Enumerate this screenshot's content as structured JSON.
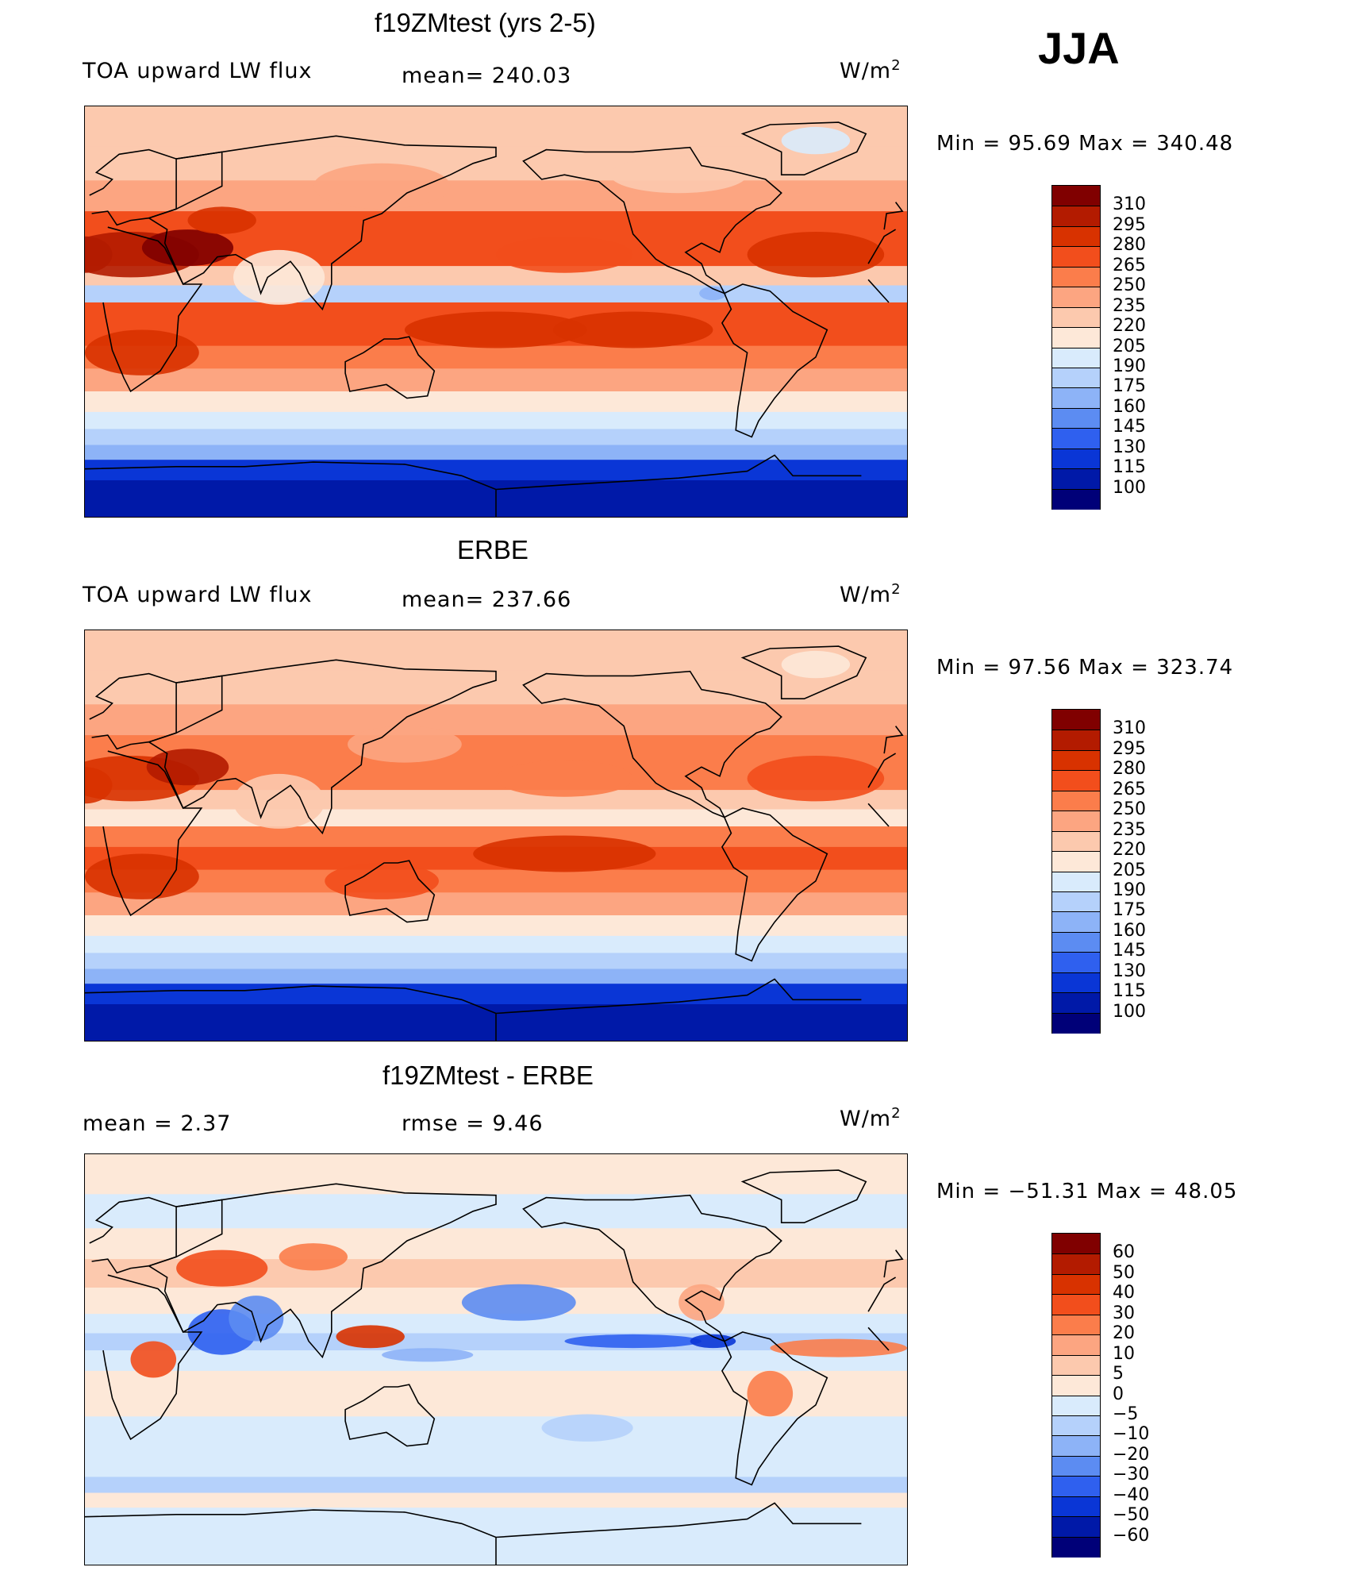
{
  "season": "JJA",
  "panels": [
    {
      "title": "f19ZMtest (yrs 2-5)",
      "left_label": "TOA upward LW flux",
      "center_label": "mean= 240.03",
      "units_base": "W/m",
      "units_exp": "2",
      "minmax": "Min =   95.69  Max  =  340.48",
      "colorbar_labels": [
        "310",
        "295",
        "280",
        "265",
        "250",
        "235",
        "220",
        "205",
        "190",
        "175",
        "160",
        "145",
        "130",
        "115",
        "100"
      ]
    },
    {
      "title": "ERBE",
      "left_label": "TOA upward LW flux",
      "center_label": "mean= 237.66",
      "units_base": "W/m",
      "units_exp": "2",
      "minmax": "Min =   97.56  Max  =  323.74",
      "colorbar_labels": [
        "310",
        "295",
        "280",
        "265",
        "250",
        "235",
        "220",
        "205",
        "190",
        "175",
        "160",
        "145",
        "130",
        "115",
        "100"
      ]
    },
    {
      "title": "f19ZMtest - ERBE",
      "left_label": "mean =     2.37",
      "center_label": "rmse =     9.46",
      "units_base": "W/m",
      "units_exp": "2",
      "minmax": "Min = −51.31  Max =    48.05",
      "colorbar_labels": [
        "60",
        "50",
        "40",
        "30",
        "20",
        "10",
        "5",
        "0",
        "−5",
        "−10",
        "−20",
        "−30",
        "−40",
        "−50",
        "−60"
      ]
    }
  ],
  "colors": {
    "abs_scale": [
      "#800000",
      "#b31b00",
      "#d83200",
      "#f24e1c",
      "#fb7d4b",
      "#fca581",
      "#fcc9ae",
      "#fde8d8",
      "#d9ebfc",
      "#b5d1fb",
      "#8db3f7",
      "#5c8cf2",
      "#2f60ef",
      "#0a36d6",
      "#0019a8",
      "#000078"
    ],
    "diff_scale": [
      "#800000",
      "#b31b00",
      "#d83200",
      "#f24e1c",
      "#fb7d4b",
      "#fca581",
      "#fcc9ae",
      "#fde8d8",
      "#d9ebfc",
      "#b5d1fb",
      "#8db3f7",
      "#5c8cf2",
      "#2f60ef",
      "#0a36d6",
      "#0019a8",
      "#000078"
    ]
  },
  "map_fields": {
    "model": [
      {
        "lat": 80,
        "level": 6
      },
      {
        "lat": 65,
        "level": 6
      },
      {
        "lat": 50,
        "level": 5
      },
      {
        "lat": 38,
        "level": 3
      },
      {
        "lat": 25,
        "level": 3
      },
      {
        "lat": 15,
        "level": 6
      },
      {
        "lat": 8,
        "level": 9
      },
      {
        "lat": 0,
        "level": 3
      },
      {
        "lat": -10,
        "level": 3
      },
      {
        "lat": -20,
        "level": 4
      },
      {
        "lat": -30,
        "level": 5
      },
      {
        "lat": -40,
        "level": 7
      },
      {
        "lat": -48,
        "level": 8
      },
      {
        "lat": -55,
        "level": 9
      },
      {
        "lat": -62,
        "level": 10
      },
      {
        "lat": -68,
        "level": 13
      },
      {
        "lat": -80,
        "level": 14
      }
    ],
    "erbe": [
      {
        "lat": 80,
        "level": 6
      },
      {
        "lat": 65,
        "level": 6
      },
      {
        "lat": 50,
        "level": 5
      },
      {
        "lat": 38,
        "level": 4
      },
      {
        "lat": 25,
        "level": 4
      },
      {
        "lat": 15,
        "level": 6
      },
      {
        "lat": 8,
        "level": 7
      },
      {
        "lat": 0,
        "level": 4
      },
      {
        "lat": -10,
        "level": 3
      },
      {
        "lat": -20,
        "level": 4
      },
      {
        "lat": -30,
        "level": 5
      },
      {
        "lat": -40,
        "level": 7
      },
      {
        "lat": -48,
        "level": 8
      },
      {
        "lat": -55,
        "level": 9
      },
      {
        "lat": -62,
        "level": 10
      },
      {
        "lat": -68,
        "level": 13
      },
      {
        "lat": -80,
        "level": 14
      }
    ],
    "diff": [
      {
        "lat": 80,
        "level": 7
      },
      {
        "lat": 65,
        "level": 8
      },
      {
        "lat": 50,
        "level": 7
      },
      {
        "lat": 38,
        "level": 6
      },
      {
        "lat": 25,
        "level": 7
      },
      {
        "lat": 15,
        "level": 8
      },
      {
        "lat": 8,
        "level": 9
      },
      {
        "lat": 0,
        "level": 8
      },
      {
        "lat": -10,
        "level": 7
      },
      {
        "lat": -20,
        "level": 7
      },
      {
        "lat": -30,
        "level": 8
      },
      {
        "lat": -40,
        "level": 8
      },
      {
        "lat": -48,
        "level": 8
      },
      {
        "lat": -55,
        "level": 9
      },
      {
        "lat": -62,
        "level": 7
      },
      {
        "lat": -68,
        "level": 8
      },
      {
        "lat": -80,
        "level": 8
      }
    ]
  }
}
